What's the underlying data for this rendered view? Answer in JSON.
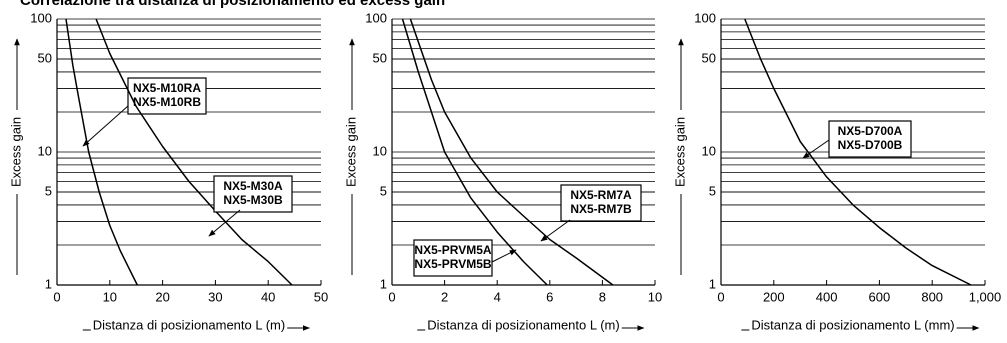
{
  "header": {
    "title": "Correlazione tra distanza di posizionamento ed excess gain"
  },
  "chart_data": [
    {
      "type": "line",
      "ylabel": "Excess gain",
      "xlabel": "Distanza di posizionamento L (m)",
      "xlim": [
        0,
        50
      ],
      "xticks": [
        0,
        10,
        20,
        30,
        40,
        50
      ],
      "ylim": [
        1,
        100
      ],
      "yticks": [
        1,
        5,
        10,
        50,
        100
      ],
      "log_y": true,
      "grid": true,
      "series": [
        {
          "labels": [
            "NX5-M10RA",
            "NX5-M10RB"
          ],
          "color": "#000000",
          "x": [
            1.7,
            3,
            4,
            6,
            8,
            10,
            12,
            15.2
          ],
          "values": [
            100,
            45,
            27,
            10,
            5,
            2.8,
            1.8,
            1
          ]
        },
        {
          "labels": [
            "NX5-M30A",
            "NX5-M30B"
          ],
          "color": "#000000",
          "x": [
            7.4,
            10,
            15,
            20,
            25,
            30,
            35,
            40,
            44.5
          ],
          "values": [
            100,
            55,
            22,
            11,
            6,
            3.6,
            2.2,
            1.5,
            1
          ]
        }
      ]
    },
    {
      "type": "line",
      "ylabel": "Excess gain",
      "xlabel": "Distanza di posizionamento L (m)",
      "xlim": [
        0,
        10
      ],
      "xticks": [
        0,
        2,
        4,
        6,
        8,
        10
      ],
      "ylim": [
        1,
        100
      ],
      "yticks": [
        1,
        5,
        10,
        50,
        100
      ],
      "log_y": true,
      "grid": true,
      "series": [
        {
          "labels": [
            "NX5-RM7A",
            "NX5-RM7B"
          ],
          "color": "#000000",
          "x": [
            0.7,
            1.5,
            2,
            3,
            4,
            5,
            6,
            7,
            8.4
          ],
          "values": [
            100,
            35,
            20,
            9,
            5,
            3.3,
            2.2,
            1.6,
            1
          ]
        },
        {
          "labels": [
            "NX5-PRVM5A",
            "NX5-PRVM5B"
          ],
          "color": "#000000",
          "x": [
            0.4,
            1,
            2,
            3,
            4,
            5,
            5.9
          ],
          "values": [
            100,
            40,
            10,
            4.5,
            2.5,
            1.5,
            1
          ]
        }
      ]
    },
    {
      "type": "line",
      "ylabel": "Excess gain",
      "xlabel": "Distanza di posizionamento L (mm)",
      "xlim": [
        0,
        1000
      ],
      "xticks": [
        0,
        200,
        400,
        600,
        800,
        {
          "value": 1000,
          "label": "1,000"
        }
      ],
      "ylim": [
        1,
        100
      ],
      "yticks": [
        1,
        5,
        10,
        50,
        100
      ],
      "log_y": true,
      "grid": true,
      "series": [
        {
          "labels": [
            "NX5-D700A",
            "NX5-D700B"
          ],
          "color": "#000000",
          "x": [
            90,
            150,
            200,
            300,
            400,
            500,
            600,
            700,
            800,
            947
          ],
          "values": [
            100,
            50,
            30,
            12,
            6.5,
            4,
            2.7,
            1.9,
            1.4,
            1
          ]
        }
      ]
    }
  ]
}
